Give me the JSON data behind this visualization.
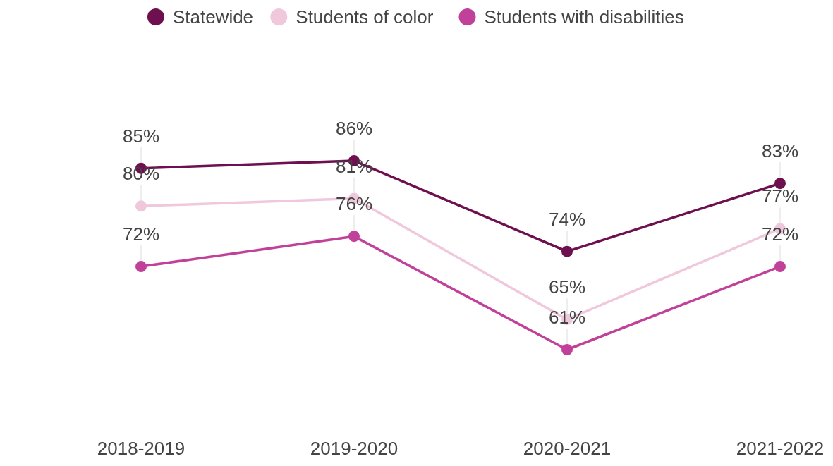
{
  "chart_data": {
    "type": "line",
    "categories": [
      "2018-2019",
      "2019-2020",
      "2020-2021",
      "2021-2022"
    ],
    "series": [
      {
        "name": "Statewide",
        "color": "#6e1050",
        "values": [
          85,
          86,
          74,
          83
        ],
        "value_labels": [
          "85%",
          "86%",
          "74%",
          "83%"
        ]
      },
      {
        "name": "Students of color",
        "color": "#f0c8dc",
        "values": [
          80,
          81,
          65,
          77
        ],
        "value_labels": [
          "80%",
          "81%",
          "65%",
          "77%"
        ]
      },
      {
        "name": "Students with disabilities",
        "color": "#c0409a",
        "values": [
          72,
          76,
          61,
          72
        ],
        "value_labels": [
          "72%",
          "76%",
          "61%",
          "72%"
        ]
      }
    ],
    "legend": "top",
    "marker": "circle"
  }
}
